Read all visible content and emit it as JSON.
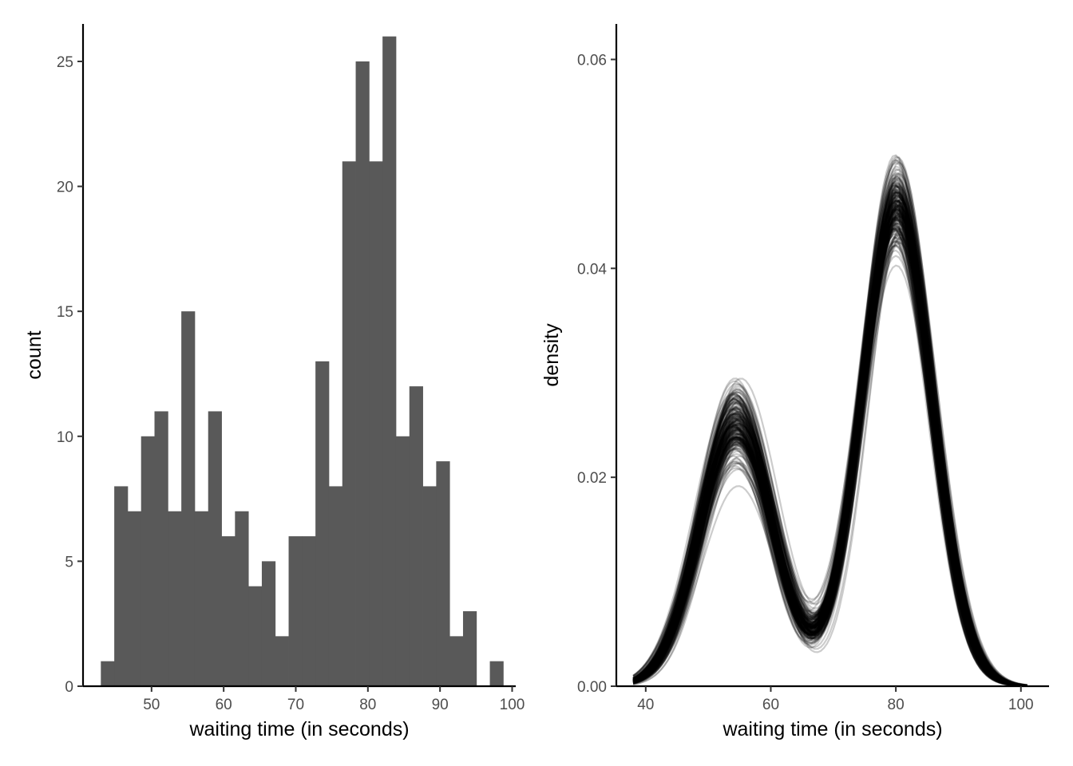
{
  "chart_data": [
    {
      "type": "bar",
      "subtype": "histogram",
      "xlabel": "waiting time (in seconds)",
      "ylabel": "count",
      "xlim": [
        40.5,
        100.5
      ],
      "ylim": [
        0,
        26.5
      ],
      "xticks": [
        50,
        60,
        70,
        80,
        90,
        100
      ],
      "yticks": [
        0,
        5,
        10,
        15,
        20,
        25
      ],
      "bin_width": 1.86,
      "bin_centers": [
        43.9,
        45.76,
        47.62,
        49.48,
        51.34,
        53.2,
        55.06,
        56.92,
        58.78,
        60.64,
        62.5,
        64.36,
        66.22,
        68.08,
        69.94,
        71.8,
        73.66,
        75.52,
        77.38,
        79.24,
        81.1,
        82.96,
        84.82,
        86.68,
        88.54,
        90.4,
        92.26,
        94.12,
        95.98,
        97.84
      ],
      "counts": [
        1,
        8,
        7,
        10,
        11,
        7,
        15,
        7,
        11,
        6,
        7,
        4,
        5,
        2,
        6,
        6,
        13,
        8,
        21,
        25,
        21,
        26,
        10,
        12,
        8,
        9,
        2,
        3,
        0,
        1
      ],
      "bar_color": "#595959",
      "grid": false
    },
    {
      "type": "line",
      "subtype": "bootstrapped density curves",
      "xlabel": "waiting time (in seconds)",
      "ylabel": "density",
      "xlim": [
        35.3,
        104.5
      ],
      "ylim": [
        0,
        0.0634
      ],
      "xticks": [
        40,
        60,
        80,
        100
      ],
      "yticks": [
        "0.00",
        "0.02",
        "0.04",
        "0.06"
      ],
      "ytick_values": [
        0,
        0.02,
        0.04,
        0.06
      ],
      "x_range": [
        38,
        101
      ],
      "curve_count": 200,
      "peak1_location": 54.5,
      "peak2_location": 80.2,
      "peak1_height_range": [
        0.016,
        0.0368
      ],
      "peak2_height_range": [
        0.035,
        0.0535
      ],
      "trough_location": 66,
      "typical_peak1": 0.025,
      "typical_peak2": 0.046,
      "typical_trough": 0.0065,
      "line_color": "#000000",
      "line_alpha": 0.2,
      "grid": false
    }
  ]
}
